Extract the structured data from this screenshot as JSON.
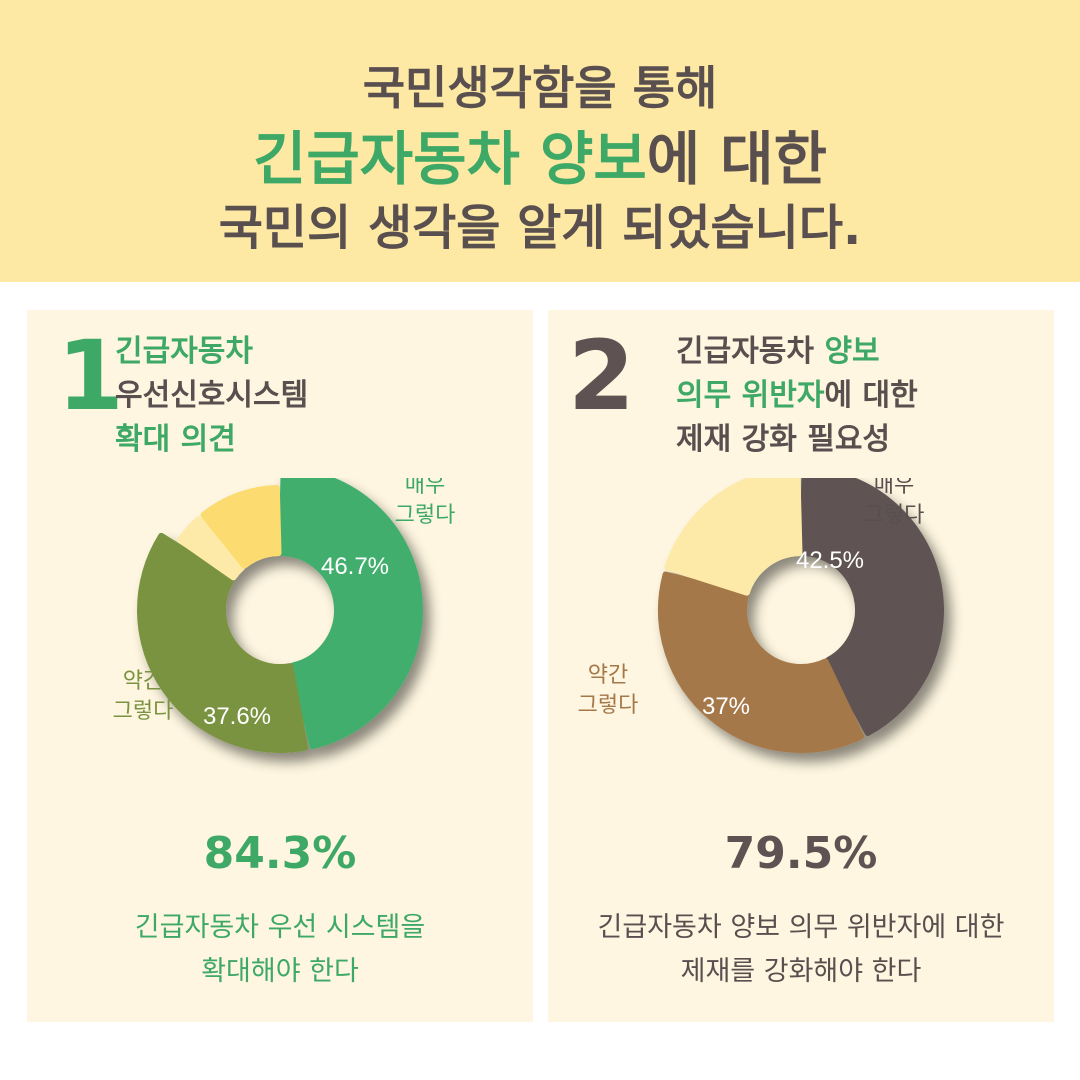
{
  "header": {
    "line1": "국민생각함을 통해",
    "line2_highlight": "긴급자동차 양보",
    "line2_rest": "에 대한",
    "line3": "국민의 생각을 알게 되었습니다."
  },
  "panel1": {
    "number": "1",
    "title_line1": "긴급자동차",
    "title_line2": "우선신호시스템",
    "title_line3": "확대 의견",
    "total": "84.3%",
    "desc_line1": "긴급자동차 우선 시스템을",
    "desc_line2": "확대해야 한다"
  },
  "panel2": {
    "number": "2",
    "title_line1_a": "긴급자동차 ",
    "title_line1_b": "양보",
    "title_line2_a": "의무 위반자",
    "title_line2_b": "에 대한",
    "title_line3": "제재 강화 필요성",
    "total": "79.5%",
    "desc_line1": "긴급자동차 양보 의무 위반자에 대한",
    "desc_line2": "제재를 강화해야 한다"
  },
  "chart_data": [
    {
      "type": "pie",
      "style": "donut",
      "title": "",
      "categories": [
        "매우 그렇다",
        "약간 그렇다",
        "",
        ""
      ],
      "values": [
        46.7,
        37.6,
        4.5,
        11.2
      ],
      "value_labels": [
        "46.7%",
        "37.6%",
        "",
        ""
      ],
      "category_label_lines": [
        [
          "매우",
          "그렇다"
        ],
        [
          "약간",
          "그렇다"
        ],
        [],
        []
      ],
      "colors": [
        "#43ae6d",
        "#7a9340",
        "#fdeaa8",
        "#fcdc70"
      ],
      "label_colors": [
        "#3ea866",
        "#7a9340"
      ]
    },
    {
      "type": "pie",
      "style": "donut",
      "title": "",
      "categories": [
        "매우 그렇다",
        "약간 그렇다",
        ""
      ],
      "values": [
        42.5,
        37.0,
        20.5
      ],
      "value_labels": [
        "42.5%",
        "37%",
        ""
      ],
      "category_label_lines": [
        [
          "매우",
          "그렇다"
        ],
        [
          "약간",
          "그렇다"
        ],
        []
      ],
      "colors": [
        "#5e5252",
        "#a5784a",
        "#fdeaa8"
      ],
      "label_colors": [
        "#5a4f4f",
        "#a5784a"
      ]
    }
  ]
}
